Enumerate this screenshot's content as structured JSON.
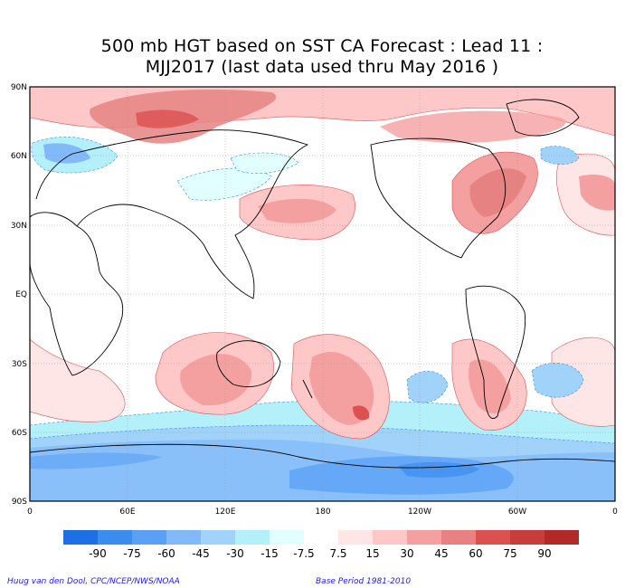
{
  "title": {
    "line1": "500 mb HGT based on SST CA Forecast : Lead 11 :",
    "line2": "MJJ2017 (last data used thru May 2016 )"
  },
  "axes": {
    "lat_labels": [
      "90N",
      "60N",
      "30N",
      "EQ",
      "30S",
      "60S",
      "90S"
    ],
    "lon_labels": [
      "0",
      "60E",
      "120E",
      "180",
      "120W",
      "60W",
      "0"
    ]
  },
  "colorbar": {
    "labels": [
      "-90",
      "-75",
      "-60",
      "-45",
      "-30",
      "-15",
      "-7.5",
      "7.5",
      "15",
      "30",
      "45",
      "60",
      "75",
      "90"
    ],
    "colors": [
      "#1e6ee6",
      "#3c8cf0",
      "#5aa0f5",
      "#82b9f8",
      "#a0d2fa",
      "#b4f0fa",
      "#e1ffff",
      "#ffffff",
      "#ffe6e6",
      "#ffc8c8",
      "#f5a0a0",
      "#e68282",
      "#dc5050",
      "#c83c3c",
      "#b42828"
    ]
  },
  "footer": {
    "credit": "Huug van den Dool, CPC/NCEP/NWS/NOAA",
    "base_period": "Base Period 1981-2010"
  }
}
